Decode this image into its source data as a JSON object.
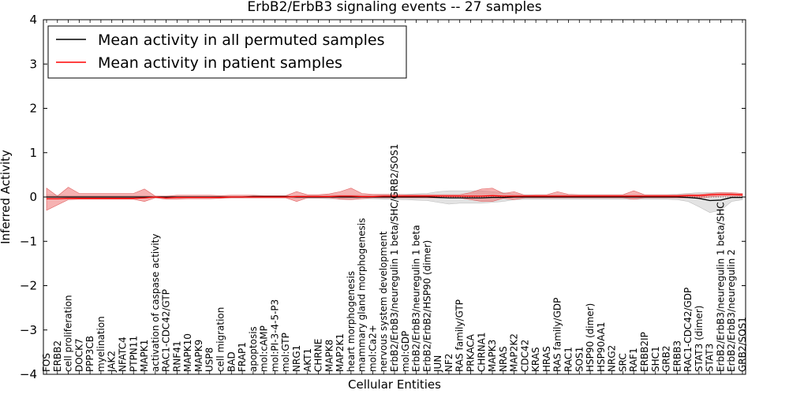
{
  "chart_data": {
    "type": "line",
    "title": "ErbB2/ErbB3 signaling events -- 27 samples",
    "xlabel": "Cellular Entities",
    "ylabel": "Inferred Activity",
    "ylim": [
      -4,
      4
    ],
    "yticks": [
      -4,
      -3,
      -2,
      -1,
      0,
      1,
      2,
      3,
      4
    ],
    "legend_position": "top-left",
    "categories": [
      "FOS",
      "ERBB2",
      "cell proliferation",
      "DOCK7",
      "PPP3CB",
      "myelination",
      "JAK2",
      "NFATC4",
      "PTPN11",
      "MAPK1",
      "activation of caspase activity",
      "RAC1-CDC42/GTP",
      "RNF41",
      "MAPK10",
      "MAPK9",
      "USP8",
      "cell migration",
      "BAD",
      "FRAP1",
      "apoptosis",
      "mol:cAMP",
      "mol:PI-3-4-5-P3",
      "mol:GTP",
      "NRG1",
      "AKT1",
      "CHRNE",
      "MAPK8",
      "MAP2K1",
      "heart morphogenesis",
      "mammary gland morphogenesis",
      "mol:Ca2+",
      "nervous system development",
      "ErbB2/ErbB3/neuregulin 1 beta/SHC/GRB2/SOS1",
      "mol:GDP",
      "ErbB2/ErbB3/neuregulin 1 beta",
      "ErbB2/ErbB2/HSP90 (dimer)",
      "JUN",
      "NF2",
      "RAS family/GTP",
      "PRKACA",
      "CHRNA1",
      "MAPK3",
      "NRAS",
      "MAP2K2",
      "CDC42",
      "KRAS",
      "HRAS",
      "RAS family/GDP",
      "RAC1",
      "SOS1",
      "HSP90 (dimer)",
      "HSP90AA1",
      "NRG2",
      "SRC",
      "RAF1",
      "ERBB2IP",
      "SHC1",
      "GRB2",
      "ERBB3",
      "RAC1-CDC42/GDP",
      "STAT3 (dimer)",
      "STAT3",
      "ErbB2/ErbB3/neuregulin 1 beta/SHC",
      "ErbB2/ErbB3/neuregulin 2",
      "GRB2/SOS1"
    ],
    "series": [
      {
        "name": "Mean activity in all permuted samples",
        "color": "#000000",
        "values": [
          0,
          0,
          0,
          0,
          0,
          0,
          0,
          0,
          0,
          0,
          0,
          0,
          0,
          0,
          0,
          0,
          0,
          0,
          0,
          0.01,
          0.01,
          0.01,
          0.01,
          0,
          0,
          0,
          0,
          0,
          0,
          0,
          0,
          0,
          0,
          0,
          0,
          0,
          -0.01,
          -0.02,
          -0.02,
          -0.02,
          -0.02,
          -0.01,
          -0.01,
          0,
          0,
          0,
          0,
          0,
          0,
          0,
          0,
          0,
          0,
          0,
          0,
          0,
          0,
          0,
          0,
          -0.01,
          -0.03,
          -0.08,
          -0.07,
          -0.01,
          -0.01
        ],
        "band_lower": [
          -0.04,
          -0.04,
          -0.03,
          -0.03,
          -0.03,
          -0.03,
          -0.03,
          -0.03,
          -0.03,
          -0.03,
          -0.02,
          -0.02,
          -0.02,
          -0.02,
          -0.02,
          -0.02,
          -0.02,
          -0.02,
          -0.02,
          -0.02,
          -0.02,
          -0.02,
          -0.02,
          -0.03,
          -0.03,
          -0.03,
          -0.04,
          -0.04,
          -0.04,
          -0.04,
          -0.04,
          -0.05,
          -0.05,
          -0.06,
          -0.07,
          -0.08,
          -0.12,
          -0.16,
          -0.14,
          -0.14,
          -0.14,
          -0.12,
          -0.1,
          -0.06,
          -0.05,
          -0.05,
          -0.05,
          -0.05,
          -0.05,
          -0.05,
          -0.05,
          -0.05,
          -0.05,
          -0.05,
          -0.05,
          -0.05,
          -0.05,
          -0.05,
          -0.06,
          -0.1,
          -0.22,
          -0.35,
          -0.3,
          -0.1,
          -0.06
        ],
        "band_upper": [
          0.04,
          0.04,
          0.03,
          0.03,
          0.03,
          0.03,
          0.03,
          0.03,
          0.03,
          0.03,
          0.02,
          0.02,
          0.02,
          0.02,
          0.02,
          0.02,
          0.02,
          0.02,
          0.02,
          0.03,
          0.03,
          0.03,
          0.03,
          0.03,
          0.03,
          0.03,
          0.04,
          0.04,
          0.04,
          0.04,
          0.04,
          0.05,
          0.05,
          0.06,
          0.07,
          0.08,
          0.12,
          0.14,
          0.14,
          0.14,
          0.14,
          0.12,
          0.1,
          0.06,
          0.05,
          0.05,
          0.05,
          0.05,
          0.05,
          0.05,
          0.05,
          0.05,
          0.05,
          0.05,
          0.05,
          0.05,
          0.05,
          0.05,
          0.06,
          0.08,
          0.1,
          0.1,
          0.1,
          0.08,
          0.06
        ]
      },
      {
        "name": "Mean activity in patient samples",
        "color": "#ff0000",
        "values": [
          -0.04,
          -0.04,
          -0.03,
          -0.03,
          -0.03,
          -0.03,
          -0.03,
          -0.03,
          -0.03,
          -0.02,
          0,
          -0.02,
          -0.01,
          -0.01,
          -0.01,
          -0.01,
          -0.01,
          0,
          0,
          0,
          0,
          0,
          0,
          0.01,
          0.01,
          0.01,
          0.01,
          0.02,
          0.02,
          0.01,
          0.01,
          0.02,
          0.02,
          0.02,
          0.02,
          0.02,
          0.02,
          0.02,
          0.02,
          0.02,
          0.02,
          0.03,
          0.02,
          0.02,
          0.02,
          0.02,
          0.02,
          0.02,
          0.02,
          0.02,
          0.02,
          0.02,
          0.02,
          0.02,
          0.02,
          0.02,
          0.02,
          0.02,
          0.02,
          0.03,
          0.03,
          0.05,
          0.06,
          0.06,
          0.05
        ],
        "band_lower": [
          -0.3,
          -0.18,
          -0.06,
          -0.05,
          -0.05,
          -0.05,
          -0.05,
          -0.05,
          -0.05,
          -0.1,
          -0.02,
          -0.05,
          -0.05,
          -0.04,
          -0.04,
          -0.04,
          -0.03,
          -0.02,
          -0.02,
          -0.02,
          -0.02,
          -0.02,
          -0.02,
          -0.1,
          -0.02,
          -0.02,
          -0.02,
          -0.05,
          -0.06,
          -0.04,
          -0.02,
          -0.02,
          -0.02,
          -0.02,
          -0.02,
          -0.02,
          -0.02,
          -0.02,
          -0.02,
          -0.06,
          -0.1,
          -0.1,
          -0.03,
          -0.06,
          -0.02,
          -0.02,
          -0.02,
          -0.02,
          -0.02,
          -0.02,
          -0.02,
          -0.02,
          -0.02,
          -0.02,
          -0.05,
          -0.02,
          -0.02,
          -0.02,
          -0.02,
          -0.02,
          -0.02,
          0,
          0.02,
          0.02,
          0.02
        ],
        "band_upper": [
          0.2,
          0.02,
          0.22,
          0.08,
          0.08,
          0.08,
          0.08,
          0.08,
          0.08,
          0.18,
          0.02,
          0.02,
          0.04,
          0.04,
          0.04,
          0.04,
          0.03,
          0.04,
          0.04,
          0.04,
          0.03,
          0.03,
          0.03,
          0.12,
          0.05,
          0.05,
          0.07,
          0.12,
          0.2,
          0.08,
          0.06,
          0.06,
          0.06,
          0.05,
          0.05,
          0.05,
          0.05,
          0.05,
          0.05,
          0.1,
          0.18,
          0.2,
          0.08,
          0.12,
          0.04,
          0.05,
          0.05,
          0.12,
          0.06,
          0.05,
          0.05,
          0.05,
          0.05,
          0.05,
          0.14,
          0.05,
          0.05,
          0.05,
          0.05,
          0.06,
          0.06,
          0.08,
          0.1,
          0.1,
          0.08
        ]
      }
    ]
  }
}
